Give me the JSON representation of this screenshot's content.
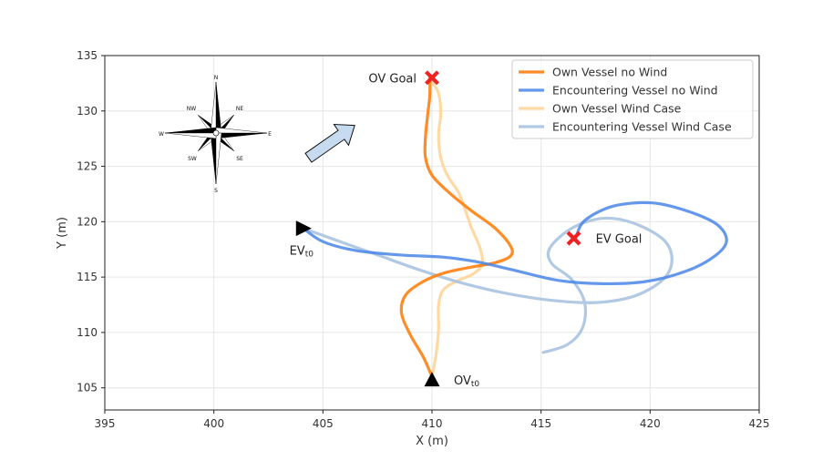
{
  "chart_data": {
    "type": "line",
    "title": "",
    "xlabel": "X (m)",
    "ylabel": "Y (m)",
    "xlim": [
      395,
      425
    ],
    "ylim": [
      103,
      135
    ],
    "xticks": [
      395,
      400,
      405,
      410,
      415,
      420,
      425
    ],
    "yticks": [
      105,
      110,
      115,
      120,
      125,
      130,
      135
    ],
    "grid": true,
    "legend_position": "top-right",
    "series": [
      {
        "name": "Own Vessel no Wind",
        "color": "#ff7f0e",
        "opacity": 0.9,
        "x": [
          410.0,
          409.6,
          409.0,
          408.6,
          408.8,
          409.6,
          410.6,
          411.8,
          412.9,
          413.6,
          413.6,
          412.9,
          411.8,
          410.8,
          410.0,
          409.7,
          409.7,
          409.8,
          409.9,
          409.9
        ],
        "y": [
          106.0,
          107.8,
          109.8,
          111.8,
          113.4,
          114.6,
          115.4,
          115.9,
          116.3,
          116.9,
          117.8,
          119.4,
          121.0,
          122.6,
          124.2,
          125.8,
          127.6,
          129.6,
          131.4,
          133.0
        ]
      },
      {
        "name": "Encountering Vessel no Wind",
        "color": "#4a86e8",
        "opacity": 0.85,
        "x": [
          404.1,
          405.0,
          406.5,
          408.5,
          410.5,
          412.0,
          413.8,
          415.8,
          417.8,
          419.8,
          421.6,
          422.9,
          423.5,
          423.1,
          421.8,
          420.1,
          418.3,
          417.0,
          416.6
        ],
        "y": [
          119.4,
          118.2,
          117.4,
          117.0,
          116.8,
          116.4,
          115.6,
          114.7,
          114.4,
          114.6,
          115.5,
          116.8,
          118.2,
          119.7,
          120.9,
          121.7,
          121.4,
          120.1,
          118.6
        ]
      },
      {
        "name": "Own Vessel Wind Case",
        "color": "#ffd59a",
        "opacity": 0.9,
        "x": [
          410.0,
          410.2,
          410.3,
          410.3,
          410.5,
          411.1,
          411.9,
          412.3,
          412.2,
          411.8,
          411.5,
          411.2,
          410.7,
          410.4,
          410.3,
          410.4,
          410.3,
          410.0
        ],
        "y": [
          106.0,
          108.2,
          110.3,
          112.4,
          113.8,
          114.6,
          115.3,
          116.2,
          117.6,
          119.5,
          121.2,
          122.7,
          124.2,
          125.8,
          127.8,
          129.8,
          131.6,
          132.6
        ]
      },
      {
        "name": "Encountering Vessel Wind Case",
        "color": "#a9c3df",
        "opacity": 0.9,
        "x": [
          404.1,
          405.5,
          407.5,
          409.5,
          411.5,
          413.5,
          415.5,
          417.5,
          419.3,
          420.6,
          421.0,
          420.6,
          419.2,
          417.8,
          416.4,
          415.4,
          415.5,
          416.4,
          417.0,
          416.9,
          416.2,
          415.1
        ],
        "y": [
          119.4,
          118.4,
          117.0,
          115.6,
          114.4,
          113.5,
          112.9,
          112.7,
          113.3,
          114.8,
          116.6,
          118.4,
          119.9,
          120.3,
          119.4,
          117.6,
          116.2,
          114.8,
          112.7,
          110.4,
          108.9,
          108.2
        ]
      }
    ],
    "markers": [
      {
        "label": "OV Goal",
        "shape": "x",
        "color": "#ee2222",
        "x": 410.0,
        "y": 133.0
      },
      {
        "label": "EV Goal",
        "shape": "x",
        "color": "#ee2222",
        "x": 416.5,
        "y": 118.5
      },
      {
        "label": "OVt0",
        "label_main": "OV",
        "label_sub": "t0",
        "shape": "triangle-up",
        "color": "#000000",
        "x": 410.0,
        "y": 105.7
      },
      {
        "label": "EVt0",
        "label_main": "EV",
        "label_sub": "t0",
        "shape": "triangle-right",
        "color": "#000000",
        "x": 404.1,
        "y": 119.4
      }
    ],
    "annotations": {
      "wind_arrow": {
        "color": "#c6dbf0",
        "direction": "NE"
      },
      "compass_rose": {
        "labels": [
          "N",
          "NE",
          "E",
          "SE",
          "S",
          "SW",
          "W",
          "NW"
        ]
      }
    }
  }
}
